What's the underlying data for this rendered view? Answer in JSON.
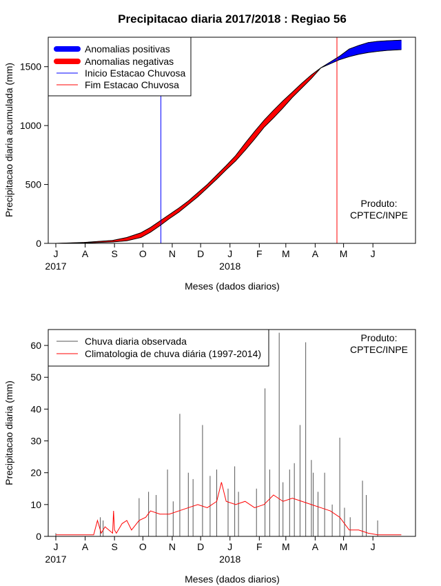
{
  "chart_data": [
    {
      "type": "area",
      "title": "Precipitacao diaria 2017/2018 : Regiao 56",
      "xlabel": "Meses (dados diarios)",
      "ylabel": "Precipitacao diaria acumulada (mm)",
      "ylim": [
        0,
        1750
      ],
      "yticks": [
        0,
        500,
        1000,
        1500
      ],
      "xtick_labels": [
        "J",
        "A",
        "S",
        "O",
        "N",
        "D",
        "J",
        "F",
        "M",
        "A",
        "M",
        "J"
      ],
      "xtick_days": [
        0,
        31,
        62,
        92,
        123,
        153,
        184,
        215,
        243,
        274,
        304,
        335
      ],
      "year_labels": [
        {
          "text": "2017",
          "day": 0
        },
        {
          "text": "2018",
          "day": 184
        }
      ],
      "xlim_days": [
        -8,
        380
      ],
      "observed_cumulative": {
        "days": [
          0,
          30,
          60,
          75,
          90,
          100,
          110,
          120,
          130,
          140,
          150,
          160,
          170,
          180,
          190,
          200,
          210,
          220,
          230,
          240,
          250,
          260,
          270,
          280,
          290,
          300,
          310,
          320,
          330,
          340,
          350,
          365
        ],
        "values": [
          0,
          4,
          12,
          22,
          50,
          95,
          150,
          210,
          265,
          330,
          395,
          470,
          545,
          625,
          700,
          790,
          885,
          985,
          1065,
          1150,
          1240,
          1320,
          1400,
          1490,
          1540,
          1590,
          1650,
          1680,
          1705,
          1715,
          1720,
          1725
        ]
      },
      "climatology_cumulative": {
        "days": [
          0,
          30,
          60,
          75,
          90,
          100,
          110,
          120,
          130,
          140,
          150,
          160,
          170,
          180,
          190,
          200,
          210,
          220,
          230,
          240,
          250,
          260,
          270,
          280,
          290,
          300,
          310,
          320,
          330,
          340,
          350,
          365
        ],
        "values": [
          0,
          8,
          25,
          50,
          90,
          135,
          190,
          245,
          300,
          360,
          430,
          500,
          580,
          660,
          745,
          850,
          950,
          1045,
          1130,
          1210,
          1285,
          1360,
          1430,
          1490,
          1525,
          1560,
          1585,
          1605,
          1620,
          1630,
          1638,
          1645
        ]
      },
      "rainy_season_start_day": 111,
      "rainy_season_end_day": 297,
      "legend": [
        {
          "label": "Anomalias positivas",
          "color": "#0000ff"
        },
        {
          "label": "Anomalias negativas",
          "color": "#ff0000"
        },
        {
          "label": "Inicio Estacao Chuvosa",
          "color": "#0000ff"
        },
        {
          "label": "Fim Estacao Chuvosa",
          "color": "#ff0000"
        }
      ],
      "legend_position": "top-left",
      "annotation": [
        "Produto:",
        "CPTEC/INPE"
      ]
    },
    {
      "type": "line",
      "title": "",
      "xlabel": "Meses (dados diarios)",
      "ylabel": "Precipitacao diaria (mm)",
      "ylim": [
        0,
        65
      ],
      "yticks": [
        0,
        10,
        20,
        30,
        40,
        50,
        60
      ],
      "xtick_labels": [
        "J",
        "A",
        "S",
        "O",
        "N",
        "D",
        "J",
        "F",
        "M",
        "A",
        "M",
        "J"
      ],
      "xtick_days": [
        0,
        31,
        62,
        92,
        123,
        153,
        184,
        215,
        243,
        274,
        304,
        335
      ],
      "year_labels": [
        {
          "text": "2017",
          "day": 0
        },
        {
          "text": "2018",
          "day": 184
        }
      ],
      "xlim_days": [
        -8,
        380
      ],
      "observed_daily_peaks": [
        {
          "day": 0,
          "value": 1
        },
        {
          "day": 47,
          "value": 6
        },
        {
          "day": 50,
          "value": 5
        },
        {
          "day": 88,
          "value": 12
        },
        {
          "day": 98,
          "value": 14
        },
        {
          "day": 106,
          "value": 13
        },
        {
          "day": 118,
          "value": 21
        },
        {
          "day": 124,
          "value": 11
        },
        {
          "day": 131,
          "value": 38.5
        },
        {
          "day": 140,
          "value": 20
        },
        {
          "day": 145,
          "value": 18
        },
        {
          "day": 155,
          "value": 35
        },
        {
          "day": 163,
          "value": 19
        },
        {
          "day": 170,
          "value": 21
        },
        {
          "day": 182,
          "value": 15
        },
        {
          "day": 189,
          "value": 22
        },
        {
          "day": 193,
          "value": 14
        },
        {
          "day": 212,
          "value": 15
        },
        {
          "day": 221,
          "value": 46.5
        },
        {
          "day": 226,
          "value": 21
        },
        {
          "day": 236,
          "value": 64
        },
        {
          "day": 240,
          "value": 17
        },
        {
          "day": 247,
          "value": 21
        },
        {
          "day": 252,
          "value": 23
        },
        {
          "day": 258,
          "value": 35
        },
        {
          "day": 264,
          "value": 61
        },
        {
          "day": 270,
          "value": 24
        },
        {
          "day": 272,
          "value": 20
        },
        {
          "day": 277,
          "value": 14
        },
        {
          "day": 284,
          "value": 20
        },
        {
          "day": 292,
          "value": 10
        },
        {
          "day": 300,
          "value": 31
        },
        {
          "day": 305,
          "value": 9
        },
        {
          "day": 311,
          "value": 6
        },
        {
          "day": 324,
          "value": 17.5
        },
        {
          "day": 328,
          "value": 13
        },
        {
          "day": 340,
          "value": 5
        }
      ],
      "climatology_daily": {
        "days": [
          0,
          40,
          44,
          48,
          52,
          60,
          61,
          62,
          64,
          70,
          75,
          80,
          88,
          95,
          100,
          110,
          120,
          130,
          140,
          150,
          160,
          170,
          175,
          180,
          190,
          200,
          210,
          220,
          230,
          240,
          250,
          260,
          270,
          280,
          290,
          300,
          305,
          310,
          320,
          330,
          340,
          350,
          365
        ],
        "values": [
          0.5,
          0.5,
          5,
          1,
          3,
          1,
          8,
          2,
          1,
          4,
          5,
          2,
          5,
          6,
          8,
          7,
          7,
          8,
          9,
          10,
          9,
          11,
          17,
          11,
          10,
          11,
          9,
          10,
          13,
          11,
          12,
          11,
          10,
          9,
          8,
          6,
          4,
          2,
          2,
          1,
          0.5,
          0.5,
          0.5
        ]
      },
      "legend": [
        {
          "label": "Chuva diaria observada",
          "color": "#555555"
        },
        {
          "label": "Climatologia de chuva diária (1997-2014)",
          "color": "#ff0000"
        }
      ],
      "legend_position": "top-left",
      "annotation": [
        "Produto:",
        "CPTEC/INPE"
      ]
    }
  ]
}
